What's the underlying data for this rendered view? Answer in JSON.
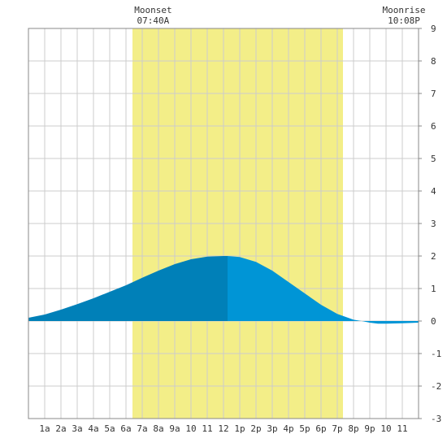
{
  "chart_data": {
    "type": "area",
    "title": "",
    "xlabel": "",
    "ylabel": "",
    "xlim": [
      0,
      24
    ],
    "ylim": [
      -3,
      9
    ],
    "y_ticks": [
      "-3",
      "-2",
      "-1",
      "0",
      "1",
      "2",
      "3",
      "4",
      "5",
      "6",
      "7",
      "8",
      "9"
    ],
    "x_ticks": [
      {
        "x": 1,
        "label": "1a"
      },
      {
        "x": 2,
        "label": "2a"
      },
      {
        "x": 3,
        "label": "3a"
      },
      {
        "x": 4,
        "label": "4a"
      },
      {
        "x": 5,
        "label": "5a"
      },
      {
        "x": 6,
        "label": "6a"
      },
      {
        "x": 7,
        "label": "7a"
      },
      {
        "x": 8,
        "label": "8a"
      },
      {
        "x": 9,
        "label": "9a"
      },
      {
        "x": 10,
        "label": "10"
      },
      {
        "x": 11,
        "label": "11"
      },
      {
        "x": 12,
        "label": "12"
      },
      {
        "x": 13,
        "label": "1p"
      },
      {
        "x": 14,
        "label": "2p"
      },
      {
        "x": 15,
        "label": "3p"
      },
      {
        "x": 16,
        "label": "4p"
      },
      {
        "x": 17,
        "label": "5p"
      },
      {
        "x": 18,
        "label": "6p"
      },
      {
        "x": 19,
        "label": "7p"
      },
      {
        "x": 20,
        "label": "8p"
      },
      {
        "x": 21,
        "label": "9p"
      },
      {
        "x": 22,
        "label": "10"
      },
      {
        "x": 23,
        "label": "11"
      }
    ],
    "grid": true,
    "daylight": {
      "start": 6.4,
      "end": 19.35,
      "color": "#f3ee88"
    },
    "series": [
      {
        "fill_before_peak": "#0080b8",
        "fill_after_peak": "#0095d6",
        "peak_x": 12.25,
        "x": [
          0,
          1,
          2,
          3,
          4,
          5,
          6,
          7,
          8,
          9,
          10,
          11,
          12,
          12.25,
          13,
          14,
          15,
          16,
          17,
          18,
          19,
          20,
          20.5,
          21,
          21.5,
          22,
          23,
          24
        ],
        "y": [
          0.1,
          0.2,
          0.35,
          0.52,
          0.7,
          0.9,
          1.1,
          1.33,
          1.55,
          1.75,
          1.9,
          1.98,
          2.0,
          2.0,
          1.97,
          1.82,
          1.55,
          1.2,
          0.85,
          0.5,
          0.22,
          0.04,
          0.0,
          -0.05,
          -0.08,
          -0.08,
          -0.07,
          -0.05
        ]
      }
    ],
    "annotations": [
      {
        "label": "Moonset",
        "time": "07:40A",
        "x": 7.67
      },
      {
        "label": "Moonrise",
        "time": "10:08P",
        "x": 23.1
      }
    ]
  }
}
